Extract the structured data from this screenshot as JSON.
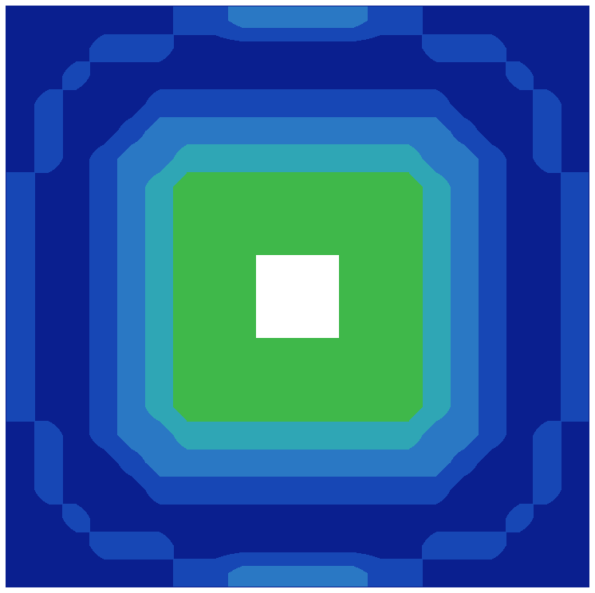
{
  "chart_data": {
    "type": "heatmap",
    "z": [
      [
        0,
        0,
        0,
        0,
        0,
        0,
        1,
        1,
        2,
        2,
        2,
        2,
        2,
        1,
        1,
        0,
        0,
        0,
        0,
        0,
        0
      ],
      [
        0,
        0,
        0,
        1,
        1,
        1,
        0,
        0,
        0,
        0,
        0,
        0,
        0,
        0,
        0,
        1,
        1,
        1,
        0,
        0,
        0
      ],
      [
        0,
        0,
        1,
        0,
        0,
        0,
        0,
        0,
        0,
        0,
        0,
        0,
        0,
        0,
        0,
        0,
        0,
        0,
        1,
        0,
        0
      ],
      [
        0,
        1,
        0,
        0,
        0,
        1,
        1,
        1,
        1,
        1,
        1,
        1,
        1,
        1,
        1,
        1,
        0,
        0,
        0,
        1,
        0
      ],
      [
        0,
        1,
        0,
        0,
        1,
        2,
        2,
        2,
        2,
        2,
        2,
        2,
        2,
        2,
        2,
        2,
        1,
        0,
        0,
        1,
        0
      ],
      [
        0,
        1,
        0,
        1,
        2,
        2,
        3,
        3,
        3,
        3,
        3,
        3,
        3,
        3,
        3,
        2,
        2,
        1,
        0,
        1,
        0
      ],
      [
        1,
        0,
        0,
        1,
        2,
        3,
        4,
        4,
        4,
        4,
        4,
        4,
        4,
        4,
        4,
        3,
        2,
        1,
        0,
        0,
        1
      ],
      [
        1,
        0,
        0,
        1,
        2,
        3,
        4,
        4,
        4,
        4,
        4,
        4,
        4,
        4,
        4,
        3,
        2,
        1,
        0,
        0,
        1
      ],
      [
        1,
        0,
        0,
        1,
        2,
        3,
        4,
        4,
        4,
        4,
        4,
        4,
        4,
        4,
        4,
        3,
        2,
        1,
        0,
        0,
        1
      ],
      [
        1,
        0,
        0,
        1,
        2,
        3,
        4,
        4,
        4,
        null,
        null,
        null,
        4,
        4,
        4,
        3,
        2,
        1,
        0,
        0,
        1
      ],
      [
        1,
        0,
        0,
        1,
        2,
        3,
        4,
        4,
        4,
        null,
        null,
        null,
        4,
        4,
        4,
        3,
        2,
        1,
        0,
        0,
        1
      ],
      [
        1,
        0,
        0,
        1,
        2,
        3,
        4,
        4,
        4,
        null,
        null,
        null,
        4,
        4,
        4,
        3,
        2,
        1,
        0,
        0,
        1
      ],
      [
        1,
        0,
        0,
        1,
        2,
        3,
        4,
        4,
        4,
        4,
        4,
        4,
        4,
        4,
        4,
        3,
        2,
        1,
        0,
        0,
        1
      ],
      [
        1,
        0,
        0,
        1,
        2,
        3,
        4,
        4,
        4,
        4,
        4,
        4,
        4,
        4,
        4,
        3,
        2,
        1,
        0,
        0,
        1
      ],
      [
        1,
        0,
        0,
        1,
        2,
        3,
        4,
        4,
        4,
        4,
        4,
        4,
        4,
        4,
        4,
        3,
        2,
        1,
        0,
        0,
        1
      ],
      [
        0,
        1,
        0,
        1,
        2,
        2,
        3,
        3,
        3,
        3,
        3,
        3,
        3,
        3,
        3,
        2,
        2,
        1,
        0,
        1,
        0
      ],
      [
        0,
        1,
        0,
        0,
        1,
        2,
        2,
        2,
        2,
        2,
        2,
        2,
        2,
        2,
        2,
        2,
        1,
        0,
        0,
        1,
        0
      ],
      [
        0,
        1,
        0,
        0,
        0,
        1,
        1,
        1,
        1,
        1,
        1,
        1,
        1,
        1,
        1,
        1,
        0,
        0,
        0,
        1,
        0
      ],
      [
        0,
        0,
        1,
        0,
        0,
        0,
        0,
        0,
        0,
        0,
        0,
        0,
        0,
        0,
        0,
        0,
        0,
        0,
        1,
        0,
        0
      ],
      [
        0,
        0,
        0,
        1,
        1,
        1,
        0,
        0,
        0,
        0,
        0,
        0,
        0,
        0,
        0,
        1,
        1,
        1,
        0,
        0,
        0
      ],
      [
        0,
        0,
        0,
        0,
        0,
        0,
        1,
        1,
        2,
        2,
        2,
        2,
        2,
        1,
        1,
        0,
        0,
        0,
        0,
        0,
        0
      ]
    ],
    "colors": [
      "#0a1f8f",
      "#1747b5",
      "#2a78c4",
      "#2fa6b5",
      "#3fb84a"
    ],
    "tick_labels": false,
    "grid": false
  }
}
